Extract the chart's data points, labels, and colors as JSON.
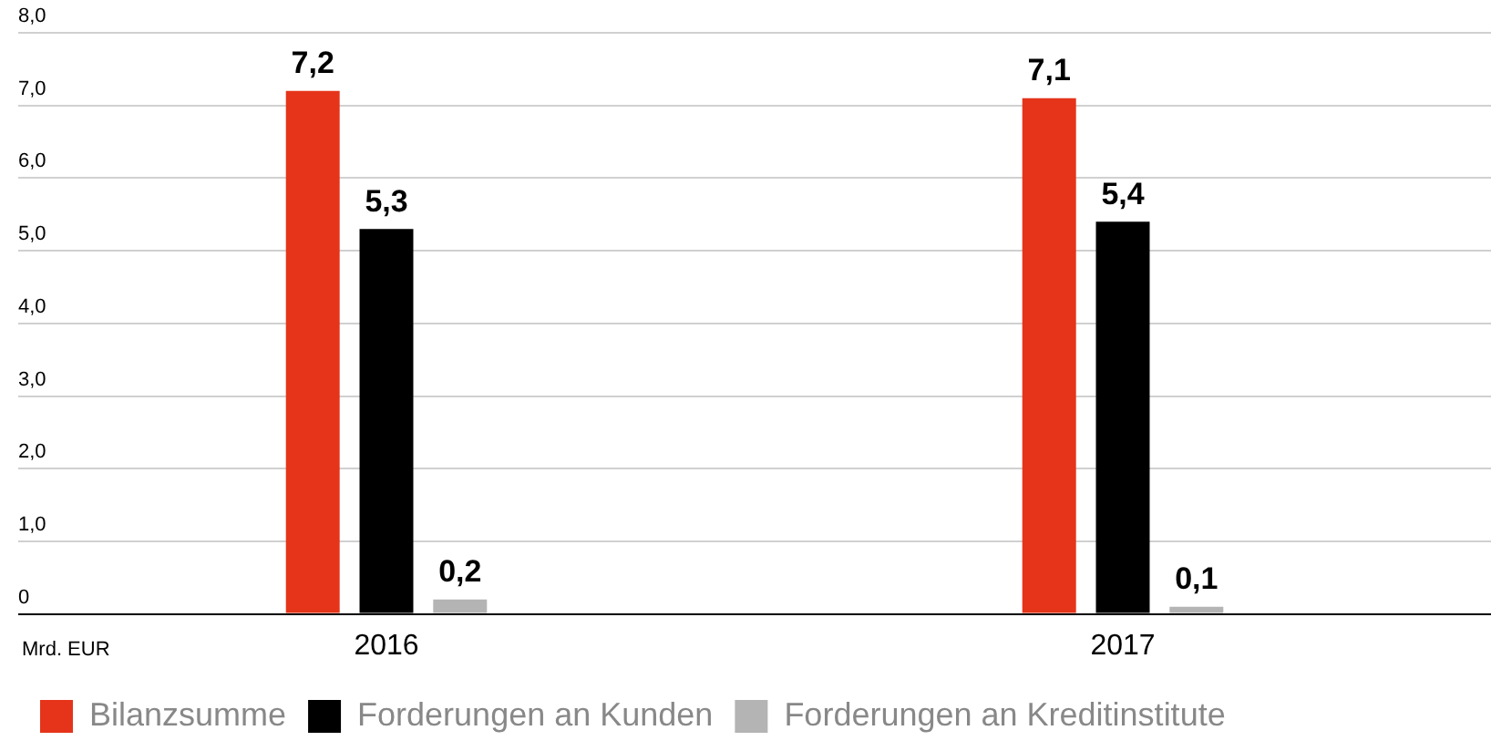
{
  "chart_data": {
    "type": "bar",
    "annotations": [
      "Mrd. EUR"
    ],
    "categories": [
      "2016",
      "2017"
    ],
    "series": [
      {
        "name": "Bilanzsumme",
        "color": "#e5341a",
        "values": [
          7.2,
          7.1
        ],
        "value_labels": [
          "7,2",
          "7,1"
        ]
      },
      {
        "name": "Forderungen an Kunden",
        "color": "#000000",
        "values": [
          5.3,
          5.4
        ],
        "value_labels": [
          "5,3",
          "5,4"
        ]
      },
      {
        "name": "Forderungen an Kreditinstitute",
        "color": "#b4b4b4",
        "values": [
          0.2,
          0.1
        ],
        "value_labels": [
          "0,2",
          "0,1"
        ]
      }
    ],
    "ylim": [
      0,
      8
    ],
    "yticks": [
      {
        "value": 0,
        "label": "0"
      },
      {
        "value": 1,
        "label": "1,0"
      },
      {
        "value": 2,
        "label": "2,0"
      },
      {
        "value": 3,
        "label": "3,0"
      },
      {
        "value": 4,
        "label": "4,0"
      },
      {
        "value": 5,
        "label": "5,0"
      },
      {
        "value": 6,
        "label": "6,0"
      },
      {
        "value": 7,
        "label": "7,0"
      },
      {
        "value": 8,
        "label": "8,0"
      }
    ],
    "grid": "y",
    "legend": "bottom left"
  }
}
